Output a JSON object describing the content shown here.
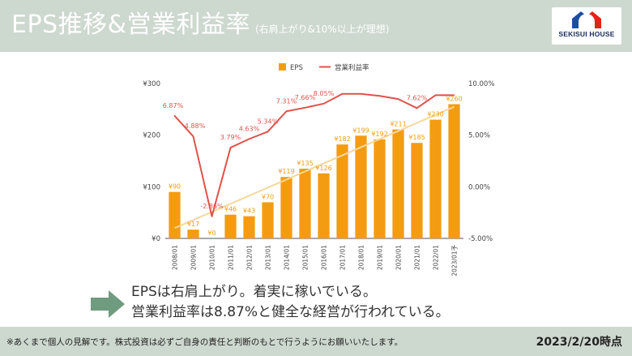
{
  "header": {
    "title": "EPS推移&営業利益率",
    "subtitle": "(右肩上がり&10%以上が理想)",
    "logo_text": "SEKISUI HOUSE"
  },
  "comment": {
    "line1": "EPSは右肩上がり。着実に稼いでいる。",
    "line2": "営業利益率は8.87%と健全な経営が行われている。"
  },
  "footer": {
    "disclaimer": "※あくまで個人の見解です。株式投資は必ずご自身の責任と判断のもとで行うようにお願いいたします。",
    "date": "2023/2/20時点"
  },
  "colors": {
    "band": "#cdd8cf",
    "bar": "#f39c12",
    "line": "#e0524a",
    "trend": "#f6d79a",
    "arrow": "#6f9b7f",
    "logo_blue": "#1a4fa0",
    "logo_red": "#e2231a"
  },
  "chart_data": {
    "type": "bar+line",
    "categories": [
      "2008/01",
      "2009/01",
      "2010/01",
      "2011/01",
      "2012/01",
      "2013/01",
      "2014/01",
      "2015/01",
      "2016/01",
      "2017/01",
      "2018/01",
      "2019/01",
      "2020/01",
      "2021/01",
      "2022/01",
      "2023/01予"
    ],
    "series": [
      {
        "name": "EPS",
        "type": "bar",
        "axis": "left",
        "values": [
          90,
          17,
          0,
          46,
          43,
          70,
          119,
          135,
          126,
          182,
          199,
          192,
          211,
          185,
          230,
          260
        ],
        "labels": [
          "¥90",
          "¥17",
          "¥0",
          "¥46",
          "¥43",
          "¥70",
          "¥119",
          "¥135",
          "¥126",
          "¥182",
          "¥199",
          "¥192",
          "¥211",
          "¥185",
          "¥230",
          "¥260"
        ]
      },
      {
        "name": "営業利益率",
        "type": "line",
        "axis": "right",
        "values": [
          6.87,
          4.88,
          -2.86,
          3.79,
          4.63,
          5.34,
          7.31,
          7.66,
          8.05,
          9.0,
          9.0,
          8.8,
          8.5,
          7.62,
          8.87,
          8.87
        ],
        "labels": [
          "6.87%",
          "4.88%",
          "-2.86%",
          "3.79%",
          "4.63%",
          "5.34%",
          "7.31%",
          "7.66%",
          "8.05%",
          "",
          "",
          "",
          "",
          "7.62%",
          "",
          ""
        ]
      }
    ],
    "trendline": {
      "from": 20,
      "to": 255
    },
    "y_left": {
      "min": 0,
      "max": 300,
      "ticks": [
        0,
        100,
        200,
        300
      ],
      "tick_labels": [
        "¥0",
        "¥100",
        "¥200",
        "¥300"
      ]
    },
    "y_right": {
      "min": -5,
      "max": 10,
      "ticks": [
        -5,
        0,
        5,
        10
      ],
      "tick_labels": [
        "-5.00%",
        "0.00%",
        "5.00%",
        "10.00%"
      ]
    },
    "legend_position": "top",
    "grid": false
  }
}
